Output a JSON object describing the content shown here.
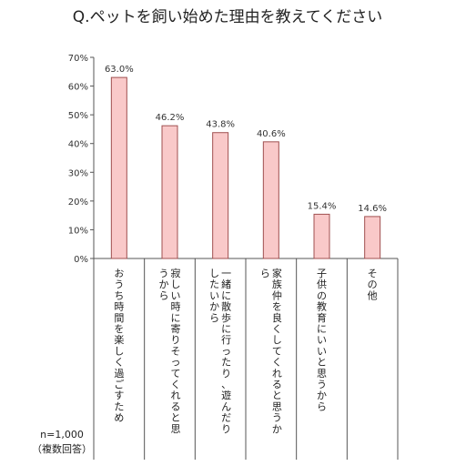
{
  "chart_data": {
    "type": "bar",
    "title": "Q.ペットを飼い始めた理由を教えてください",
    "categories": [
      "おうち時間を楽しく過ごすため",
      "寂しい時に寄りそってくれると思うから",
      "一緒に散歩に行ったり、遊んだりしたいから",
      "家族仲を良くしてくれると思うから",
      "子供の教育にいいと思うから",
      "その他"
    ],
    "values": [
      63.0,
      46.2,
      43.8,
      40.6,
      15.4,
      14.6
    ],
    "data_labels": [
      "63.0%",
      "46.2%",
      "43.8%",
      "40.6%",
      "15.4%",
      "14.6%"
    ],
    "y_ticks": [
      "0%",
      "10%",
      "20%",
      "30%",
      "40%",
      "50%",
      "60%",
      "70%"
    ],
    "ylim": [
      0,
      70
    ],
    "grid": false,
    "bar_fill": "#f9c9c9",
    "bar_stroke": "#a05050"
  },
  "note": {
    "sample": "n=1,000",
    "multi": "（複数回答）"
  }
}
